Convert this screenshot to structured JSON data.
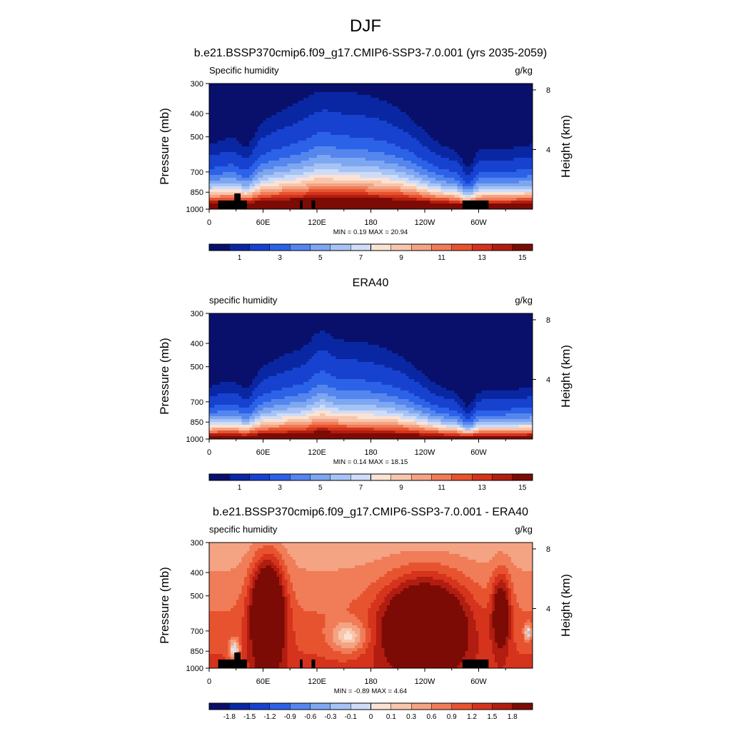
{
  "figure": {
    "title": "DJF"
  },
  "colormaps": {
    "field": [
      "#08106b",
      "#0a27a3",
      "#1742d0",
      "#2c62e8",
      "#5586ee",
      "#7ea7f2",
      "#a6c3f5",
      "#cfdcf8",
      "#fbe2d3",
      "#f8c6ad",
      "#f4a383",
      "#f07c58",
      "#e8532f",
      "#d5331c",
      "#b11d10",
      "#7d0b05"
    ],
    "diff": [
      "#08106b",
      "#0a27a3",
      "#1742d0",
      "#2c62e8",
      "#5586ee",
      "#7ea7f2",
      "#a6c3f5",
      "#cfdcf8",
      "#fbe2d3",
      "#f8c6ad",
      "#f4a383",
      "#f07c58",
      "#e8532f",
      "#d5331c",
      "#b11d10",
      "#7d0b05"
    ]
  },
  "chart_data": [
    {
      "type": "heatmap",
      "title": "b.e21.BSSP370cmip6.f09_g17.CMIP6-SSP3-7.0.001 (yrs 2035-2059)",
      "left_label": "Specific humidity",
      "right_label": "g/kg",
      "ylabel": "Pressure (mb)",
      "ylabel_right": "Height (km)",
      "x_ticks": [
        "0",
        "60E",
        "120E",
        "180",
        "120W",
        "60W"
      ],
      "x_tick_lon": [
        0,
        60,
        120,
        180,
        240,
        300
      ],
      "xlim": [
        0,
        360
      ],
      "y_ticks": [
        "300",
        "400",
        "500",
        "700",
        "850",
        "1000"
      ],
      "y_tick_p": [
        300,
        400,
        500,
        700,
        850,
        1000
      ],
      "ylim": [
        1000,
        300
      ],
      "right_ticks": [
        "8",
        "4"
      ],
      "right_tick_km": [
        8,
        4
      ],
      "minmax": "MIN =   0.19  MAX =  20.94",
      "min": 0.19,
      "max": 20.94,
      "colorbar_labels": [
        "1",
        "3",
        "5",
        "7",
        "9",
        "11",
        "13",
        "15"
      ],
      "levels": [
        0.5,
        1,
        2,
        3,
        4,
        5,
        6,
        7,
        8,
        9,
        10,
        11,
        12,
        13,
        14,
        15
      ],
      "palette": "field",
      "field": "model"
    },
    {
      "type": "heatmap",
      "title": "ERA40",
      "left_label": "specific humidity",
      "right_label": "g/kg",
      "ylabel": "Pressure (mb)",
      "ylabel_right": "Height (km)",
      "x_ticks": [
        "0",
        "60E",
        "120E",
        "180",
        "120W",
        "60W"
      ],
      "x_tick_lon": [
        0,
        60,
        120,
        180,
        240,
        300
      ],
      "xlim": [
        0,
        360
      ],
      "y_ticks": [
        "300",
        "400",
        "500",
        "700",
        "850",
        "1000"
      ],
      "y_tick_p": [
        300,
        400,
        500,
        700,
        850,
        1000
      ],
      "ylim": [
        1000,
        300
      ],
      "right_ticks": [
        "8",
        "4"
      ],
      "right_tick_km": [
        8,
        4
      ],
      "minmax": "MIN =   0.14  MAX =  18.15",
      "min": 0.14,
      "max": 18.15,
      "colorbar_labels": [
        "1",
        "3",
        "5",
        "7",
        "9",
        "11",
        "13",
        "15"
      ],
      "levels": [
        0.5,
        1,
        2,
        3,
        4,
        5,
        6,
        7,
        8,
        9,
        10,
        11,
        12,
        13,
        14,
        15
      ],
      "palette": "field",
      "field": "obs"
    },
    {
      "type": "heatmap",
      "title": "b.e21.BSSP370cmip6.f09_g17.CMIP6-SSP3-7.0.001 - ERA40",
      "left_label": "specific humidity",
      "right_label": "g/kg",
      "ylabel": "Pressure (mb)",
      "ylabel_right": "Height (km)",
      "x_ticks": [
        "0",
        "60E",
        "120E",
        "180",
        "120W",
        "60W"
      ],
      "x_tick_lon": [
        0,
        60,
        120,
        180,
        240,
        300
      ],
      "xlim": [
        0,
        360
      ],
      "y_ticks": [
        "300",
        "400",
        "500",
        "700",
        "850",
        "1000"
      ],
      "y_tick_p": [
        300,
        400,
        500,
        700,
        850,
        1000
      ],
      "ylim": [
        1000,
        300
      ],
      "right_ticks": [
        "8",
        "4"
      ],
      "right_tick_km": [
        8,
        4
      ],
      "minmax": "MIN =  -0.89  MAX =   4.64",
      "min": -0.89,
      "max": 4.64,
      "colorbar_labels": [
        "-1.8",
        "-1.5",
        "-1.2",
        "-0.9",
        "-0.6",
        "-0.3",
        "-0.1",
        "0",
        "0.1",
        "0.3",
        "0.6",
        "0.9",
        "1.2",
        "1.5",
        "1.8"
      ],
      "levels": [
        -1.8,
        -1.5,
        -1.2,
        -0.9,
        -0.6,
        -0.3,
        -0.1,
        0,
        0.1,
        0.3,
        0.6,
        0.9,
        1.2,
        1.5,
        1.8
      ],
      "palette": "diff",
      "field": "diff"
    }
  ]
}
